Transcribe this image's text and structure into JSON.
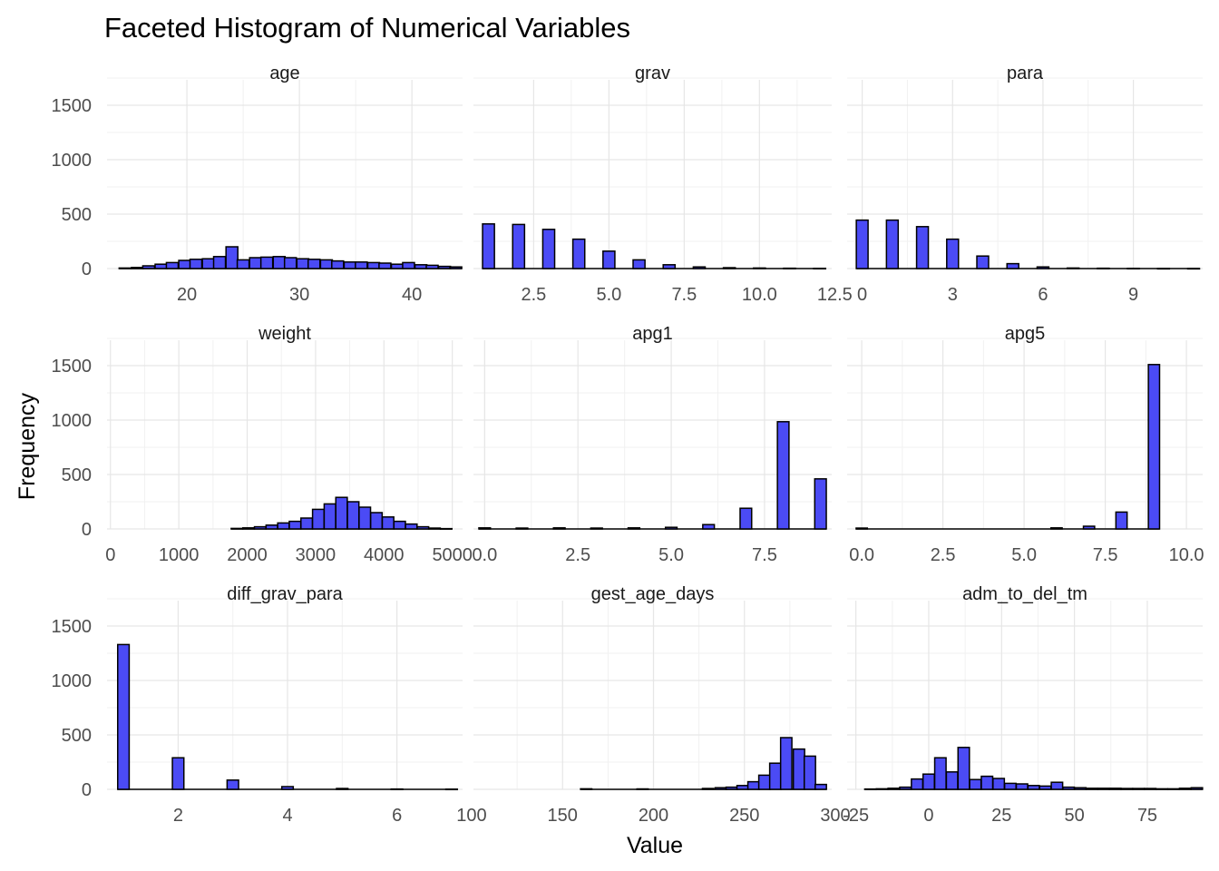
{
  "chart_data": {
    "type": "bar",
    "title": "Faceted Histogram of Numerical Variables",
    "xlabel": "Value",
    "ylabel": "Frequency",
    "fill_color": "#4b4bf5",
    "border_color": "#000000",
    "grid": true,
    "y_shared": {
      "ylim": [
        0,
        1600
      ],
      "ticks": [
        0,
        500,
        1000,
        1500
      ],
      "tick_labels": [
        "0",
        "500",
        "1000",
        "1500"
      ]
    },
    "facets": [
      {
        "name": "age",
        "xlim": [
          12.9,
          44.5
        ],
        "x_ticks": [
          20,
          30,
          40
        ],
        "x_tick_labels": [
          "20",
          "30",
          "40"
        ],
        "bin_width": 1.05,
        "bins": [
          {
            "x": 14.5,
            "count": 5
          },
          {
            "x": 15.6,
            "count": 10
          },
          {
            "x": 16.6,
            "count": 25
          },
          {
            "x": 17.7,
            "count": 40
          },
          {
            "x": 18.7,
            "count": 55
          },
          {
            "x": 19.8,
            "count": 75
          },
          {
            "x": 20.8,
            "count": 85
          },
          {
            "x": 21.9,
            "count": 90
          },
          {
            "x": 22.9,
            "count": 110
          },
          {
            "x": 24.0,
            "count": 200
          },
          {
            "x": 25.0,
            "count": 80
          },
          {
            "x": 26.1,
            "count": 100
          },
          {
            "x": 27.1,
            "count": 105
          },
          {
            "x": 28.2,
            "count": 110
          },
          {
            "x": 29.2,
            "count": 100
          },
          {
            "x": 30.3,
            "count": 90
          },
          {
            "x": 31.3,
            "count": 85
          },
          {
            "x": 32.4,
            "count": 80
          },
          {
            "x": 33.4,
            "count": 70
          },
          {
            "x": 34.5,
            "count": 60
          },
          {
            "x": 35.5,
            "count": 60
          },
          {
            "x": 36.6,
            "count": 55
          },
          {
            "x": 37.6,
            "count": 50
          },
          {
            "x": 38.7,
            "count": 40
          },
          {
            "x": 39.7,
            "count": 55
          },
          {
            "x": 40.8,
            "count": 35
          },
          {
            "x": 41.8,
            "count": 30
          },
          {
            "x": 42.9,
            "count": 20
          },
          {
            "x": 43.9,
            "count": 15
          }
        ]
      },
      {
        "name": "grav",
        "xlim": [
          0.5,
          12.4
        ],
        "x_ticks": [
          2.5,
          5.0,
          7.5,
          10.0,
          12.5
        ],
        "x_tick_labels": [
          "2.5",
          "5.0",
          "7.5",
          "10.0",
          "12.5"
        ],
        "bin_width": 0.395,
        "bins": [
          {
            "x": 1,
            "count": 410
          },
          {
            "x": 2,
            "count": 405
          },
          {
            "x": 3,
            "count": 360
          },
          {
            "x": 4,
            "count": 270
          },
          {
            "x": 5,
            "count": 160
          },
          {
            "x": 6,
            "count": 80
          },
          {
            "x": 7,
            "count": 35
          },
          {
            "x": 8,
            "count": 15
          },
          {
            "x": 9,
            "count": 8
          },
          {
            "x": 10,
            "count": 5
          },
          {
            "x": 11,
            "count": 3
          },
          {
            "x": 12,
            "count": 2
          }
        ]
      },
      {
        "name": "para",
        "xlim": [
          -0.5,
          11.3
        ],
        "x_ticks": [
          0,
          3,
          6,
          9
        ],
        "x_tick_labels": [
          "0",
          "3",
          "6",
          "9"
        ],
        "bin_width": 0.39,
        "bins": [
          {
            "x": 0,
            "count": 445
          },
          {
            "x": 1,
            "count": 445
          },
          {
            "x": 2,
            "count": 385
          },
          {
            "x": 3,
            "count": 270
          },
          {
            "x": 4,
            "count": 115
          },
          {
            "x": 5,
            "count": 45
          },
          {
            "x": 6,
            "count": 15
          },
          {
            "x": 7,
            "count": 5
          },
          {
            "x": 8,
            "count": 3
          },
          {
            "x": 9,
            "count": 2
          },
          {
            "x": 10,
            "count": 1
          },
          {
            "x": 11,
            "count": 1
          }
        ]
      },
      {
        "name": "weight",
        "xlim": [
          -50,
          5150
        ],
        "x_ticks": [
          0,
          1000,
          2000,
          3000,
          4000,
          5000
        ],
        "x_tick_labels": [
          "0",
          "1000",
          "2000",
          "3000",
          "4000",
          "5000"
        ],
        "bin_width": 168,
        "bins": [
          {
            "x": 1850,
            "count": 5
          },
          {
            "x": 2020,
            "count": 10
          },
          {
            "x": 2190,
            "count": 20
          },
          {
            "x": 2360,
            "count": 35
          },
          {
            "x": 2530,
            "count": 55
          },
          {
            "x": 2700,
            "count": 70
          },
          {
            "x": 2870,
            "count": 100
          },
          {
            "x": 3040,
            "count": 180
          },
          {
            "x": 3210,
            "count": 230
          },
          {
            "x": 3380,
            "count": 290
          },
          {
            "x": 3550,
            "count": 250
          },
          {
            "x": 3720,
            "count": 200
          },
          {
            "x": 3890,
            "count": 150
          },
          {
            "x": 4060,
            "count": 110
          },
          {
            "x": 4230,
            "count": 70
          },
          {
            "x": 4400,
            "count": 45
          },
          {
            "x": 4570,
            "count": 20
          },
          {
            "x": 4740,
            "count": 8
          },
          {
            "x": 4910,
            "count": 3
          }
        ]
      },
      {
        "name": "apg1",
        "xlim": [
          -0.3,
          9.3
        ],
        "x_ticks": [
          0,
          2.5,
          5,
          7.5
        ],
        "x_tick_labels": [
          "0.0",
          "2.5",
          "5.0",
          "7.5"
        ],
        "bin_width": 0.31,
        "bins": [
          {
            "x": 0,
            "count": 10
          },
          {
            "x": 1,
            "count": 8
          },
          {
            "x": 2,
            "count": 10
          },
          {
            "x": 3,
            "count": 8
          },
          {
            "x": 4,
            "count": 10
          },
          {
            "x": 5,
            "count": 15
          },
          {
            "x": 6,
            "count": 40
          },
          {
            "x": 7,
            "count": 190
          },
          {
            "x": 8,
            "count": 985
          },
          {
            "x": 9,
            "count": 460
          }
        ]
      },
      {
        "name": "apg5",
        "xlim": [
          -0.45,
          10.5
        ],
        "x_ticks": [
          0,
          2.5,
          5,
          7.5,
          10
        ],
        "x_tick_labels": [
          "0.0",
          "2.5",
          "5.0",
          "7.5",
          "10.0"
        ],
        "bin_width": 0.345,
        "bins": [
          {
            "x": 0,
            "count": 8
          },
          {
            "x": 6,
            "count": 10
          },
          {
            "x": 7,
            "count": 25
          },
          {
            "x": 8,
            "count": 155
          },
          {
            "x": 9,
            "count": 1510
          }
        ]
      },
      {
        "name": "diff_grav_para",
        "xlim": [
          0.7,
          7.2
        ],
        "x_ticks": [
          2,
          4,
          6
        ],
        "x_tick_labels": [
          "2",
          "4",
          "6"
        ],
        "bin_width": 0.21,
        "bins": [
          {
            "x": 1,
            "count": 1330
          },
          {
            "x": 2,
            "count": 290
          },
          {
            "x": 3,
            "count": 85
          },
          {
            "x": 4,
            "count": 25
          },
          {
            "x": 5,
            "count": 8
          },
          {
            "x": 6,
            "count": 3
          },
          {
            "x": 7,
            "count": 2
          }
        ]
      },
      {
        "name": "gest_age_days",
        "xlim": [
          101,
          298
        ],
        "x_ticks": [
          100,
          150,
          200,
          250,
          300
        ],
        "x_tick_labels": [
          "100",
          "150",
          "200",
          "250",
          "300"
        ],
        "bin_width": 6.2,
        "bins": [
          {
            "x": 163,
            "count": 5
          },
          {
            "x": 194,
            "count": 4
          },
          {
            "x": 230,
            "count": 8
          },
          {
            "x": 237,
            "count": 15
          },
          {
            "x": 243,
            "count": 20
          },
          {
            "x": 249,
            "count": 35
          },
          {
            "x": 255,
            "count": 70
          },
          {
            "x": 261,
            "count": 130
          },
          {
            "x": 267,
            "count": 240
          },
          {
            "x": 273,
            "count": 475
          },
          {
            "x": 280,
            "count": 370
          },
          {
            "x": 286,
            "count": 305
          },
          {
            "x": 292,
            "count": 45
          }
        ]
      },
      {
        "name": "adm_to_del_tm",
        "xlim": [
          -28,
          94
        ],
        "x_ticks": [
          -25,
          0,
          25,
          50,
          75
        ],
        "x_tick_labels": [
          "-25",
          "0",
          "25",
          "50",
          "75"
        ],
        "bin_width": 3.9,
        "bins": [
          {
            "x": -20,
            "count": 3
          },
          {
            "x": -16,
            "count": 5
          },
          {
            "x": -12,
            "count": 10
          },
          {
            "x": -8,
            "count": 20
          },
          {
            "x": -4,
            "count": 95
          },
          {
            "x": 0,
            "count": 140
          },
          {
            "x": 4,
            "count": 290
          },
          {
            "x": 8,
            "count": 160
          },
          {
            "x": 12,
            "count": 385
          },
          {
            "x": 16,
            "count": 90
          },
          {
            "x": 20,
            "count": 120
          },
          {
            "x": 24,
            "count": 100
          },
          {
            "x": 28,
            "count": 55
          },
          {
            "x": 32,
            "count": 50
          },
          {
            "x": 36,
            "count": 35
          },
          {
            "x": 40,
            "count": 30
          },
          {
            "x": 44,
            "count": 65
          },
          {
            "x": 48,
            "count": 20
          },
          {
            "x": 52,
            "count": 15
          },
          {
            "x": 56,
            "count": 10
          },
          {
            "x": 60,
            "count": 10
          },
          {
            "x": 64,
            "count": 10
          },
          {
            "x": 68,
            "count": 8
          },
          {
            "x": 72,
            "count": 8
          },
          {
            "x": 76,
            "count": 8
          },
          {
            "x": 80,
            "count": 5
          },
          {
            "x": 84,
            "count": 5
          },
          {
            "x": 88,
            "count": 10
          },
          {
            "x": 92,
            "count": 15
          }
        ]
      }
    ]
  }
}
